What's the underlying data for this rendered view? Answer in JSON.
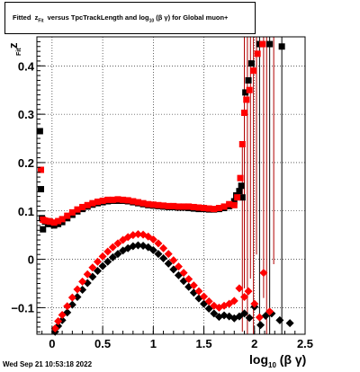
{
  "title": {
    "prefix": "Fitted",
    "z": "z",
    "zsub": "Fit",
    "middle": "versus TpcTrackLength and log",
    "logsub": "10",
    "suffix": "(β  γ) for Global muon+"
  },
  "timestamp": "Wed Sep 21 10:53:18 2022",
  "xlabel": {
    "main": "log",
    "sub": "10",
    "tail": "(β γ)"
  },
  "ylabel": {
    "main": "z",
    "sub": "Fit"
  },
  "chart_data": {
    "type": "scatter",
    "title": "Fitted z_Fit versus TpcTrackLength and log_10(β γ) for Global muon+",
    "xlabel": "log10(β γ)",
    "ylabel": "z_Fit",
    "xlim": [
      -0.15,
      2.5
    ],
    "ylim": [
      -0.155,
      0.46
    ],
    "grid": true,
    "x_ticks": [
      0,
      0.5,
      1,
      1.5,
      2,
      2.5
    ],
    "x_tick_labels": [
      "0",
      "0.5",
      "1",
      "1.5",
      "2",
      "2.5"
    ],
    "y_ticks": [
      -0.1,
      0,
      0.1,
      0.2,
      0.3,
      0.4
    ],
    "y_tick_labels": [
      "−0.1",
      "0",
      "0.1",
      "0.2",
      "0.3",
      "0.4"
    ],
    "colors": {
      "black": "#000000",
      "red": "#ff0000",
      "darkred": "#b00000"
    },
    "series": [
      {
        "color": "#000000",
        "marker": "square",
        "points": [
          [
            -0.12,
            0.265
          ],
          [
            -0.11,
            0.145
          ],
          [
            -0.1,
            0.085
          ],
          [
            -0.09,
            0.062
          ],
          [
            -0.07,
            0.078
          ],
          [
            -0.04,
            0.073
          ],
          [
            -0.02,
            0.073
          ],
          [
            0.02,
            0.07
          ],
          [
            0.06,
            0.073
          ],
          [
            0.1,
            0.077
          ],
          [
            0.15,
            0.085
          ],
          [
            0.2,
            0.092
          ],
          [
            0.25,
            0.099
          ],
          [
            0.3,
            0.104
          ],
          [
            0.35,
            0.109
          ],
          [
            0.4,
            0.113
          ],
          [
            0.45,
            0.116
          ],
          [
            0.5,
            0.118
          ],
          [
            0.55,
            0.12
          ],
          [
            0.6,
            0.121
          ],
          [
            0.65,
            0.121
          ],
          [
            0.7,
            0.121
          ],
          [
            0.75,
            0.12
          ],
          [
            0.8,
            0.118
          ],
          [
            0.85,
            0.116
          ],
          [
            0.9,
            0.114
          ],
          [
            0.95,
            0.112
          ],
          [
            1.0,
            0.111
          ],
          [
            1.05,
            0.11
          ],
          [
            1.1,
            0.109
          ],
          [
            1.15,
            0.108
          ],
          [
            1.2,
            0.108
          ],
          [
            1.25,
            0.107
          ],
          [
            1.3,
            0.107
          ],
          [
            1.35,
            0.106
          ],
          [
            1.4,
            0.105
          ],
          [
            1.45,
            0.104
          ],
          [
            1.5,
            0.104
          ],
          [
            1.55,
            0.103
          ],
          [
            1.6,
            0.103
          ],
          [
            1.65,
            0.104
          ],
          [
            1.7,
            0.106
          ],
          [
            1.75,
            0.11
          ],
          [
            1.8,
            0.12
          ],
          [
            1.82,
            0.132
          ],
          [
            1.85,
            0.141
          ],
          [
            1.87,
            0.152
          ],
          [
            1.88,
            0.128
          ],
          [
            1.91,
            0.345
          ],
          [
            1.94,
            0.37
          ],
          [
            1.97,
            0.405
          ],
          [
            2.05,
            0.445
          ],
          [
            2.15,
            0.445
          ],
          [
            2.27,
            0.44
          ]
        ]
      },
      {
        "color": "#ff0000",
        "marker": "square",
        "points": [
          [
            -0.11,
            0.185
          ],
          [
            -0.09,
            0.082
          ],
          [
            -0.07,
            0.08
          ],
          [
            -0.04,
            0.079
          ],
          [
            -0.02,
            0.078
          ],
          [
            0.02,
            0.076
          ],
          [
            0.06,
            0.079
          ],
          [
            0.1,
            0.083
          ],
          [
            0.15,
            0.09
          ],
          [
            0.2,
            0.097
          ],
          [
            0.25,
            0.103
          ],
          [
            0.3,
            0.108
          ],
          [
            0.35,
            0.112
          ],
          [
            0.4,
            0.116
          ],
          [
            0.45,
            0.119
          ],
          [
            0.5,
            0.121
          ],
          [
            0.55,
            0.123
          ],
          [
            0.6,
            0.123
          ],
          [
            0.65,
            0.124
          ],
          [
            0.7,
            0.123
          ],
          [
            0.75,
            0.122
          ],
          [
            0.8,
            0.12
          ],
          [
            0.85,
            0.118
          ],
          [
            0.9,
            0.116
          ],
          [
            0.95,
            0.114
          ],
          [
            1.0,
            0.113
          ],
          [
            1.05,
            0.112
          ],
          [
            1.1,
            0.111
          ],
          [
            1.15,
            0.11
          ],
          [
            1.2,
            0.11
          ],
          [
            1.25,
            0.109
          ],
          [
            1.3,
            0.109
          ],
          [
            1.35,
            0.109
          ],
          [
            1.4,
            0.108
          ],
          [
            1.45,
            0.107
          ],
          [
            1.5,
            0.106
          ],
          [
            1.55,
            0.105
          ],
          [
            1.6,
            0.104
          ],
          [
            1.65,
            0.106
          ],
          [
            1.7,
            0.109
          ],
          [
            1.75,
            0.114
          ],
          [
            1.8,
            0.112
          ],
          [
            1.83,
            0.128
          ],
          [
            1.86,
            0.168
          ],
          [
            1.88,
            0.238
          ],
          [
            1.9,
            0.303
          ],
          [
            1.92,
            0.33
          ],
          [
            1.95,
            0.35
          ],
          [
            1.99,
            0.39
          ],
          [
            2.03,
            0.425
          ],
          [
            2.08,
            0.445
          ]
        ]
      },
      {
        "color": "#000000",
        "marker": "diamond",
        "points": [
          [
            0.03,
            -0.15
          ],
          [
            0.06,
            -0.138
          ],
          [
            0.1,
            -0.126
          ],
          [
            0.15,
            -0.11
          ],
          [
            0.2,
            -0.094
          ],
          [
            0.25,
            -0.078
          ],
          [
            0.3,
            -0.063
          ],
          [
            0.35,
            -0.049
          ],
          [
            0.4,
            -0.036
          ],
          [
            0.45,
            -0.024
          ],
          [
            0.5,
            -0.014
          ],
          [
            0.55,
            -0.005
          ],
          [
            0.6,
            0.004
          ],
          [
            0.65,
            0.011
          ],
          [
            0.7,
            0.018
          ],
          [
            0.75,
            0.023
          ],
          [
            0.8,
            0.027
          ],
          [
            0.85,
            0.029
          ],
          [
            0.9,
            0.028
          ],
          [
            0.95,
            0.025
          ],
          [
            1.0,
            0.019
          ],
          [
            1.05,
            0.011
          ],
          [
            1.1,
            0.002
          ],
          [
            1.15,
            -0.009
          ],
          [
            1.2,
            -0.021
          ],
          [
            1.25,
            -0.033
          ],
          [
            1.3,
            -0.045
          ],
          [
            1.35,
            -0.057
          ],
          [
            1.4,
            -0.069
          ],
          [
            1.45,
            -0.081
          ],
          [
            1.5,
            -0.092
          ],
          [
            1.55,
            -0.102
          ],
          [
            1.6,
            -0.112
          ],
          [
            1.65,
            -0.119
          ],
          [
            1.7,
            -0.116
          ],
          [
            1.75,
            -0.118
          ],
          [
            1.8,
            -0.122
          ],
          [
            1.85,
            -0.118
          ],
          [
            1.9,
            -0.112
          ],
          [
            1.95,
            -0.121
          ],
          [
            2.0,
            -0.098
          ],
          [
            2.06,
            -0.136
          ],
          [
            2.11,
            -0.117
          ],
          [
            2.17,
            -0.112
          ],
          [
            2.25,
            -0.126
          ],
          [
            2.35,
            -0.132
          ]
        ]
      },
      {
        "color": "#ff0000",
        "marker": "diamond",
        "points": [
          [
            0.03,
            -0.143
          ],
          [
            0.06,
            -0.128
          ],
          [
            0.1,
            -0.115
          ],
          [
            0.15,
            -0.097
          ],
          [
            0.2,
            -0.079
          ],
          [
            0.25,
            -0.062
          ],
          [
            0.3,
            -0.046
          ],
          [
            0.35,
            -0.031
          ],
          [
            0.4,
            -0.017
          ],
          [
            0.45,
            -0.005
          ],
          [
            0.5,
            0.006
          ],
          [
            0.55,
            0.016
          ],
          [
            0.6,
            0.025
          ],
          [
            0.65,
            0.033
          ],
          [
            0.7,
            0.04
          ],
          [
            0.75,
            0.046
          ],
          [
            0.8,
            0.05
          ],
          [
            0.85,
            0.052
          ],
          [
            0.9,
            0.051
          ],
          [
            0.95,
            0.047
          ],
          [
            1.0,
            0.041
          ],
          [
            1.05,
            0.033
          ],
          [
            1.1,
            0.023
          ],
          [
            1.15,
            0.011
          ],
          [
            1.2,
            -0.002
          ],
          [
            1.25,
            -0.015
          ],
          [
            1.3,
            -0.028
          ],
          [
            1.35,
            -0.041
          ],
          [
            1.4,
            -0.054
          ],
          [
            1.45,
            -0.066
          ],
          [
            1.5,
            -0.077
          ],
          [
            1.55,
            -0.087
          ],
          [
            1.6,
            -0.096
          ],
          [
            1.65,
            -0.1
          ],
          [
            1.7,
            -0.096
          ],
          [
            1.75,
            -0.092
          ],
          [
            1.8,
            -0.086
          ],
          [
            1.85,
            -0.06
          ],
          [
            1.9,
            -0.078
          ],
          [
            1.94,
            -0.066
          ],
          [
            2.0,
            -0.092
          ],
          [
            2.05,
            -0.12
          ],
          [
            2.09,
            -0.028
          ],
          [
            2.15,
            -0.108
          ]
        ]
      }
    ],
    "error_bars": [
      {
        "x": 1.88,
        "y": 0.128,
        "low": -0.15,
        "high": 0.24,
        "color": "#b00000"
      },
      {
        "x": 1.9,
        "y": 0.303,
        "low": -0.06,
        "high": 0.46,
        "color": "#b00000"
      },
      {
        "x": 1.93,
        "y": 0.33,
        "low": -0.155,
        "high": 0.46,
        "color": "#b00000"
      },
      {
        "x": 1.96,
        "y": 0.35,
        "low": -0.04,
        "high": 0.46,
        "color": "#b00000"
      },
      {
        "x": 1.99,
        "y": 0.39,
        "low": -0.155,
        "high": 0.46,
        "color": "#b00000"
      },
      {
        "x": 2.02,
        "y": 0.425,
        "low": 0.01,
        "high": 0.46,
        "color": "#b00000"
      },
      {
        "x": 2.05,
        "y": 0.445,
        "low": -0.155,
        "high": 0.46,
        "color": "#000000"
      },
      {
        "x": 2.09,
        "y": 0.445,
        "low": -0.08,
        "high": 0.46,
        "color": "#b00000"
      },
      {
        "x": 2.12,
        "y": 0.33,
        "low": -0.155,
        "high": 0.46,
        "color": "#b00000"
      },
      {
        "x": 2.15,
        "y": 0.445,
        "low": -0.155,
        "high": 0.46,
        "color": "#000000"
      },
      {
        "x": 2.19,
        "y": 0.42,
        "low": -0.01,
        "high": 0.46,
        "color": "#b00000"
      },
      {
        "x": 2.27,
        "y": 0.44,
        "low": -0.155,
        "high": 0.46,
        "color": "#000000"
      }
    ]
  }
}
